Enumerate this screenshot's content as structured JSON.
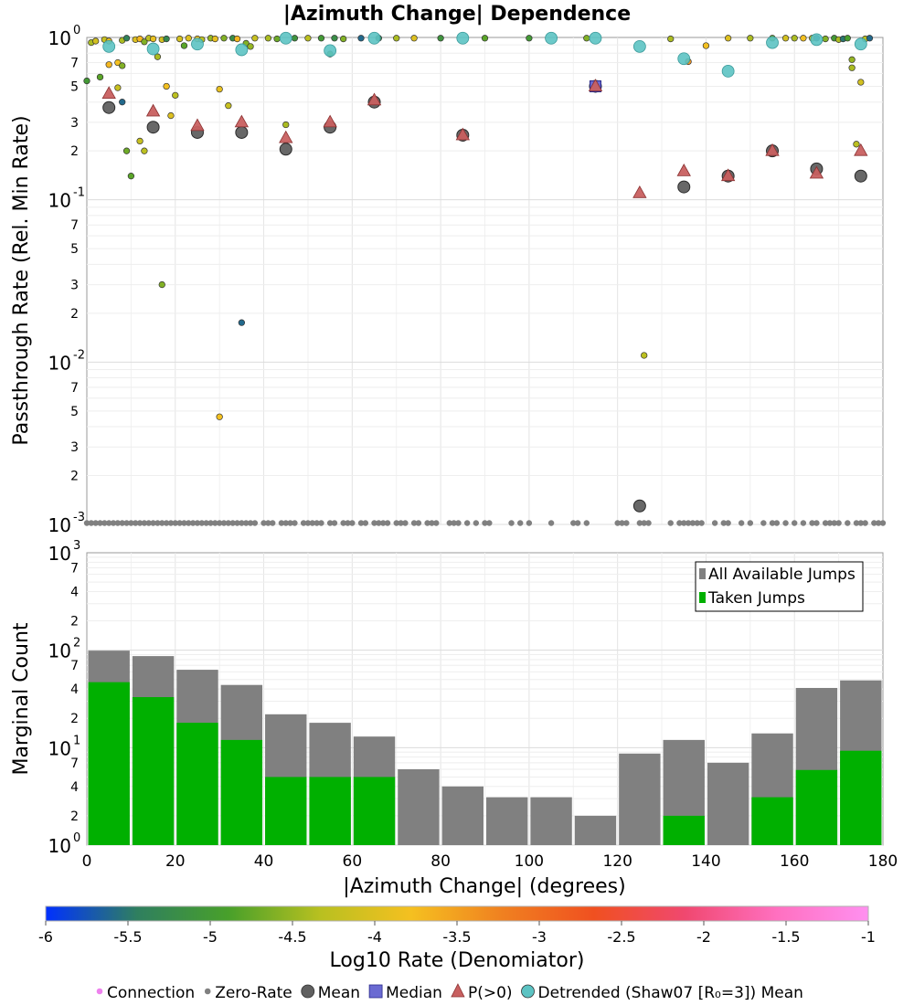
{
  "chart_data": [
    {
      "type": "scatter",
      "title": "|Azimuth Change| Dependence",
      "xlabel": "",
      "ylabel": "Passthrough Rate (Rel. Min Rate)",
      "yscale": "log",
      "xlim": [
        0,
        180
      ],
      "ylim": [
        0.001,
        1
      ],
      "grid": true,
      "y_major_ticks": [
        {
          "base": "10",
          "exp": "-3",
          "value": 0.001
        },
        {
          "base": "10",
          "exp": "-2",
          "value": 0.01
        },
        {
          "base": "10",
          "exp": "-1",
          "value": 0.1
        },
        {
          "base": "10",
          "exp": "0",
          "value": 1
        }
      ],
      "y_minor_ticks": [
        {
          "label": "2",
          "value": 0.002
        },
        {
          "label": "3",
          "value": 0.003
        },
        {
          "label": "5",
          "value": 0.005
        },
        {
          "label": "7",
          "value": 0.007
        },
        {
          "label": "2",
          "value": 0.02
        },
        {
          "label": "3",
          "value": 0.03
        },
        {
          "label": "5",
          "value": 0.05
        },
        {
          "label": "7",
          "value": 0.07
        },
        {
          "label": "2",
          "value": 0.2
        },
        {
          "label": "3",
          "value": 0.3
        },
        {
          "label": "5",
          "value": 0.5
        },
        {
          "label": "7",
          "value": 0.7
        }
      ],
      "series": [
        {
          "name": "Mean",
          "color": "#606060",
          "points": [
            [
              5,
              0.37
            ],
            [
              15,
              0.28
            ],
            [
              25,
              0.26
            ],
            [
              35,
              0.26
            ],
            [
              45,
              0.205
            ],
            [
              55,
              0.28
            ],
            [
              65,
              0.4
            ],
            [
              85,
              0.25
            ],
            [
              115,
              0.5
            ],
            [
              125,
              0.0013
            ],
            [
              135,
              0.12
            ],
            [
              145,
              0.14
            ],
            [
              155,
              0.2
            ],
            [
              165,
              0.155
            ],
            [
              175,
              0.14
            ]
          ]
        },
        {
          "name": "P(>0)",
          "color": "#c86060",
          "points": [
            [
              5,
              0.45
            ],
            [
              15,
              0.35
            ],
            [
              25,
              0.285
            ],
            [
              35,
              0.3
            ],
            [
              45,
              0.24
            ],
            [
              55,
              0.3
            ],
            [
              65,
              0.41
            ],
            [
              85,
              0.25
            ],
            [
              115,
              0.5
            ],
            [
              125,
              0.11
            ],
            [
              135,
              0.15
            ],
            [
              145,
              0.14
            ],
            [
              155,
              0.2
            ],
            [
              165,
              0.145
            ],
            [
              175,
              0.2
            ]
          ]
        },
        {
          "name": "Median",
          "color": "#6a6ad2",
          "points": [
            [
              115,
              0.5
            ]
          ]
        },
        {
          "name": "Detrended (Shaw07 [R₀=3]) Mean",
          "color": "#5cc3c3",
          "points": [
            [
              5,
              0.88
            ],
            [
              15,
              0.85
            ],
            [
              25,
              0.91
            ],
            [
              35,
              0.84
            ],
            [
              45,
              0.99
            ],
            [
              55,
              0.83
            ],
            [
              65,
              0.99
            ],
            [
              85,
              0.99
            ],
            [
              105,
              0.99
            ],
            [
              115,
              0.99
            ],
            [
              125,
              0.88
            ],
            [
              135,
              0.74
            ],
            [
              145,
              0.62
            ],
            [
              155,
              0.93
            ],
            [
              165,
              0.97
            ],
            [
              175,
              0.91
            ]
          ]
        },
        {
          "name": "Connection",
          "points": [
            [
              0,
              0.54,
              -5.0
            ],
            [
              1,
              0.93,
              -4.4
            ],
            [
              2,
              0.95,
              -4.1
            ],
            [
              3,
              0.57,
              -4.8
            ],
            [
              4,
              0.97,
              -4.2
            ],
            [
              5,
              0.95,
              -3.9
            ],
            [
              5,
              0.68,
              -3.7
            ],
            [
              7,
              0.49,
              -4.2
            ],
            [
              7,
              0.7,
              -3.8
            ],
            [
              8,
              0.96,
              -4.4
            ],
            [
              8,
              0.4,
              -5.6
            ],
            [
              8,
              0.67,
              -4.6
            ],
            [
              9,
              0.2,
              -4.7
            ],
            [
              9,
              0.99,
              -5.4
            ],
            [
              10,
              0.14,
              -4.8
            ],
            [
              11,
              0.97,
              -4.0
            ],
            [
              12,
              0.23,
              -4.2
            ],
            [
              12,
              0.98,
              -3.7
            ],
            [
              13,
              0.94,
              -4.6
            ],
            [
              13,
              0.2,
              -4.3
            ],
            [
              14,
              0.99,
              -4.3
            ],
            [
              15,
              0.98,
              -3.9
            ],
            [
              16,
              0.76,
              -4.4
            ],
            [
              17,
              0.97,
              -4.1
            ],
            [
              17,
              0.03,
              -4.6
            ],
            [
              18,
              0.5,
              -3.8
            ],
            [
              18,
              0.98,
              -5.3
            ],
            [
              19,
              0.33,
              -4.0
            ],
            [
              20,
              0.44,
              -4.3
            ],
            [
              21,
              0.98,
              -4.1
            ],
            [
              22,
              0.89,
              -4.8
            ],
            [
              23,
              0.99,
              -4.0
            ],
            [
              25,
              0.98,
              -3.8
            ],
            [
              26,
              0.97,
              -4.3
            ],
            [
              28,
              0.99,
              -4.5
            ],
            [
              29,
              0.98,
              -3.9
            ],
            [
              30,
              0.48,
              -3.9
            ],
            [
              30,
              0.0046,
              -3.8
            ],
            [
              31,
              0.99,
              -4.6
            ],
            [
              32,
              0.38,
              -4.2
            ],
            [
              33,
              0.99,
              -5.2
            ],
            [
              34,
              0.98,
              -3.7
            ],
            [
              35,
              0.0175,
              -5.6
            ],
            [
              36,
              0.92,
              -4.6
            ],
            [
              37,
              0.88,
              -4.5
            ],
            [
              38,
              0.99,
              -4.2
            ],
            [
              41,
              0.99,
              -4.4
            ],
            [
              43,
              0.98,
              -4.7
            ],
            [
              45,
              0.29,
              -4.4
            ],
            [
              47,
              0.99,
              -5.1
            ],
            [
              50,
              0.99,
              -4.3
            ],
            [
              53,
              0.99,
              -5.0
            ],
            [
              55,
              0.79,
              -4.8
            ],
            [
              56,
              0.99,
              -5.2
            ],
            [
              58,
              0.98,
              -4.6
            ],
            [
              62,
              0.99,
              -5.6
            ],
            [
              66,
              0.99,
              -5.3
            ],
            [
              70,
              0.99,
              -4.4
            ],
            [
              74,
              0.99,
              -4.0
            ],
            [
              80,
              0.99,
              -5.1
            ],
            [
              90,
              0.99,
              -4.8
            ],
            [
              100,
              0.99,
              -5.0
            ],
            [
              113,
              0.99,
              -4.6
            ],
            [
              126,
              0.011,
              -4.3
            ],
            [
              132,
              0.98,
              -4.4
            ],
            [
              136,
              0.71,
              -3.4
            ],
            [
              140,
              0.89,
              -3.8
            ],
            [
              145,
              0.99,
              -4.0
            ],
            [
              150,
              0.99,
              -4.4
            ],
            [
              155,
              0.99,
              -4.7
            ],
            [
              158,
              0.99,
              -4.1
            ],
            [
              160,
              0.99,
              -4.4
            ],
            [
              162,
              0.99,
              -3.8
            ],
            [
              164,
              0.99,
              -4.2
            ],
            [
              165,
              0.99,
              -5.6
            ],
            [
              167,
              0.98,
              -4.6
            ],
            [
              169,
              0.99,
              -5.0
            ],
            [
              170,
              0.97,
              -4.4
            ],
            [
              171,
              0.98,
              -5.5
            ],
            [
              172,
              0.99,
              -4.9
            ],
            [
              173,
              0.65,
              -4.4
            ],
            [
              173,
              0.73,
              -4.5
            ],
            [
              174,
              0.22,
              -4.3
            ],
            [
              175,
              0.53,
              -4.1
            ],
            [
              176,
              0.98,
              -4.3
            ],
            [
              177,
              0.99,
              -5.6
            ]
          ]
        },
        {
          "name": "Zero-Rate",
          "color": "#808080",
          "y_value": 0.001,
          "x": [
            0,
            1,
            2,
            3,
            4,
            5,
            6,
            7,
            8,
            9,
            10,
            11,
            12,
            13,
            14,
            15,
            16,
            17,
            18,
            19,
            20,
            21,
            22,
            23,
            24,
            25,
            26,
            27,
            28,
            29,
            30,
            31,
            32,
            33,
            34,
            35,
            36,
            37,
            38,
            40,
            41,
            42,
            44,
            45,
            46,
            47,
            49,
            50,
            51,
            52,
            53,
            55,
            56,
            58,
            59,
            60,
            62,
            63,
            65,
            66,
            67,
            68,
            70,
            71,
            72,
            74,
            75,
            77,
            78,
            79,
            82,
            83,
            84,
            86,
            88,
            90,
            91,
            96,
            98,
            100,
            105,
            110,
            111,
            113,
            120,
            121,
            122,
            125,
            126,
            127,
            132,
            134,
            135,
            136,
            137,
            138,
            139,
            142,
            144,
            145,
            148,
            150,
            153,
            155,
            156,
            158,
            160,
            162,
            164,
            165,
            167,
            168,
            169,
            170,
            172,
            174,
            175,
            176,
            178,
            179,
            180
          ]
        }
      ]
    },
    {
      "type": "bar",
      "ylabel": "Marginal Count",
      "xlabel": "|Azimuth Change| (degrees)",
      "yscale": "log",
      "xlim": [
        0,
        180
      ],
      "ylim": [
        1,
        1000
      ],
      "bin_width": 10,
      "categories": [
        5,
        15,
        25,
        35,
        45,
        55,
        65,
        75,
        85,
        95,
        105,
        115,
        125,
        135,
        145,
        155,
        165,
        175
      ],
      "series": [
        {
          "name": "All Available Jumps",
          "color": "#808080",
          "values": [
            99,
            87,
            63,
            44,
            22,
            18,
            13,
            6,
            4,
            3.1,
            3.1,
            2,
            8.7,
            12,
            7,
            14,
            41,
            49
          ]
        },
        {
          "name": "Taken Jumps",
          "color": "#00b000",
          "values": [
            47,
            33,
            18,
            12,
            5,
            5,
            5,
            0,
            0,
            0,
            0,
            0,
            0,
            2,
            0,
            3.1,
            5.9,
            9.3
          ]
        }
      ],
      "x_ticks": [
        "0",
        "20",
        "40",
        "60",
        "80",
        "100",
        "120",
        "140",
        "160",
        "180"
      ],
      "x_tick_values": [
        0,
        20,
        40,
        60,
        80,
        100,
        120,
        140,
        160,
        180
      ],
      "y_major_ticks": [
        {
          "base": "10",
          "exp": "0",
          "value": 1
        },
        {
          "base": "10",
          "exp": "1",
          "value": 10
        },
        {
          "base": "10",
          "exp": "2",
          "value": 100
        },
        {
          "base": "10",
          "exp": "3",
          "value": 1000
        }
      ],
      "y_minor_ticks": [
        {
          "label": "2",
          "value": 2
        },
        {
          "label": "4",
          "value": 4
        },
        {
          "label": "7",
          "value": 7
        },
        {
          "label": "2",
          "value": 20
        },
        {
          "label": "4",
          "value": 40
        },
        {
          "label": "7",
          "value": 70
        },
        {
          "label": "2",
          "value": 200
        },
        {
          "label": "4",
          "value": 400
        },
        {
          "label": "7",
          "value": 700
        }
      ],
      "legend_position": "top-right",
      "grid": true
    }
  ],
  "colorbar": {
    "label": "Log10 Rate (Denomiator)",
    "ticks": [
      "-6",
      "-5.5",
      "-5",
      "-4.5",
      "-4",
      "-3.5",
      "-3",
      "-2.5",
      "-2",
      "-1.5",
      "-1"
    ],
    "range": [
      -6,
      -1
    ],
    "colors": [
      "#0030ff",
      "#2f7f5f",
      "#48a02a",
      "#b8c020",
      "#f5c020",
      "#f08020",
      "#f05020",
      "#f04870",
      "#ff70c0",
      "#ff90f0"
    ]
  },
  "legend": [
    {
      "label": "Connection",
      "marker": "dot",
      "color": "#ee82ee"
    },
    {
      "label": "Zero-Rate",
      "marker": "dot",
      "color": "#808080"
    },
    {
      "label": "Mean",
      "marker": "circle",
      "color": "#606060"
    },
    {
      "label": "Median",
      "marker": "square",
      "color": "#6a6ad2"
    },
    {
      "label": "P(>0)",
      "marker": "triangle",
      "color": "#c86060"
    },
    {
      "label": "Detrended (Shaw07 [R₀=3]) Mean",
      "marker": "circle",
      "color": "#5cc3c3"
    }
  ]
}
